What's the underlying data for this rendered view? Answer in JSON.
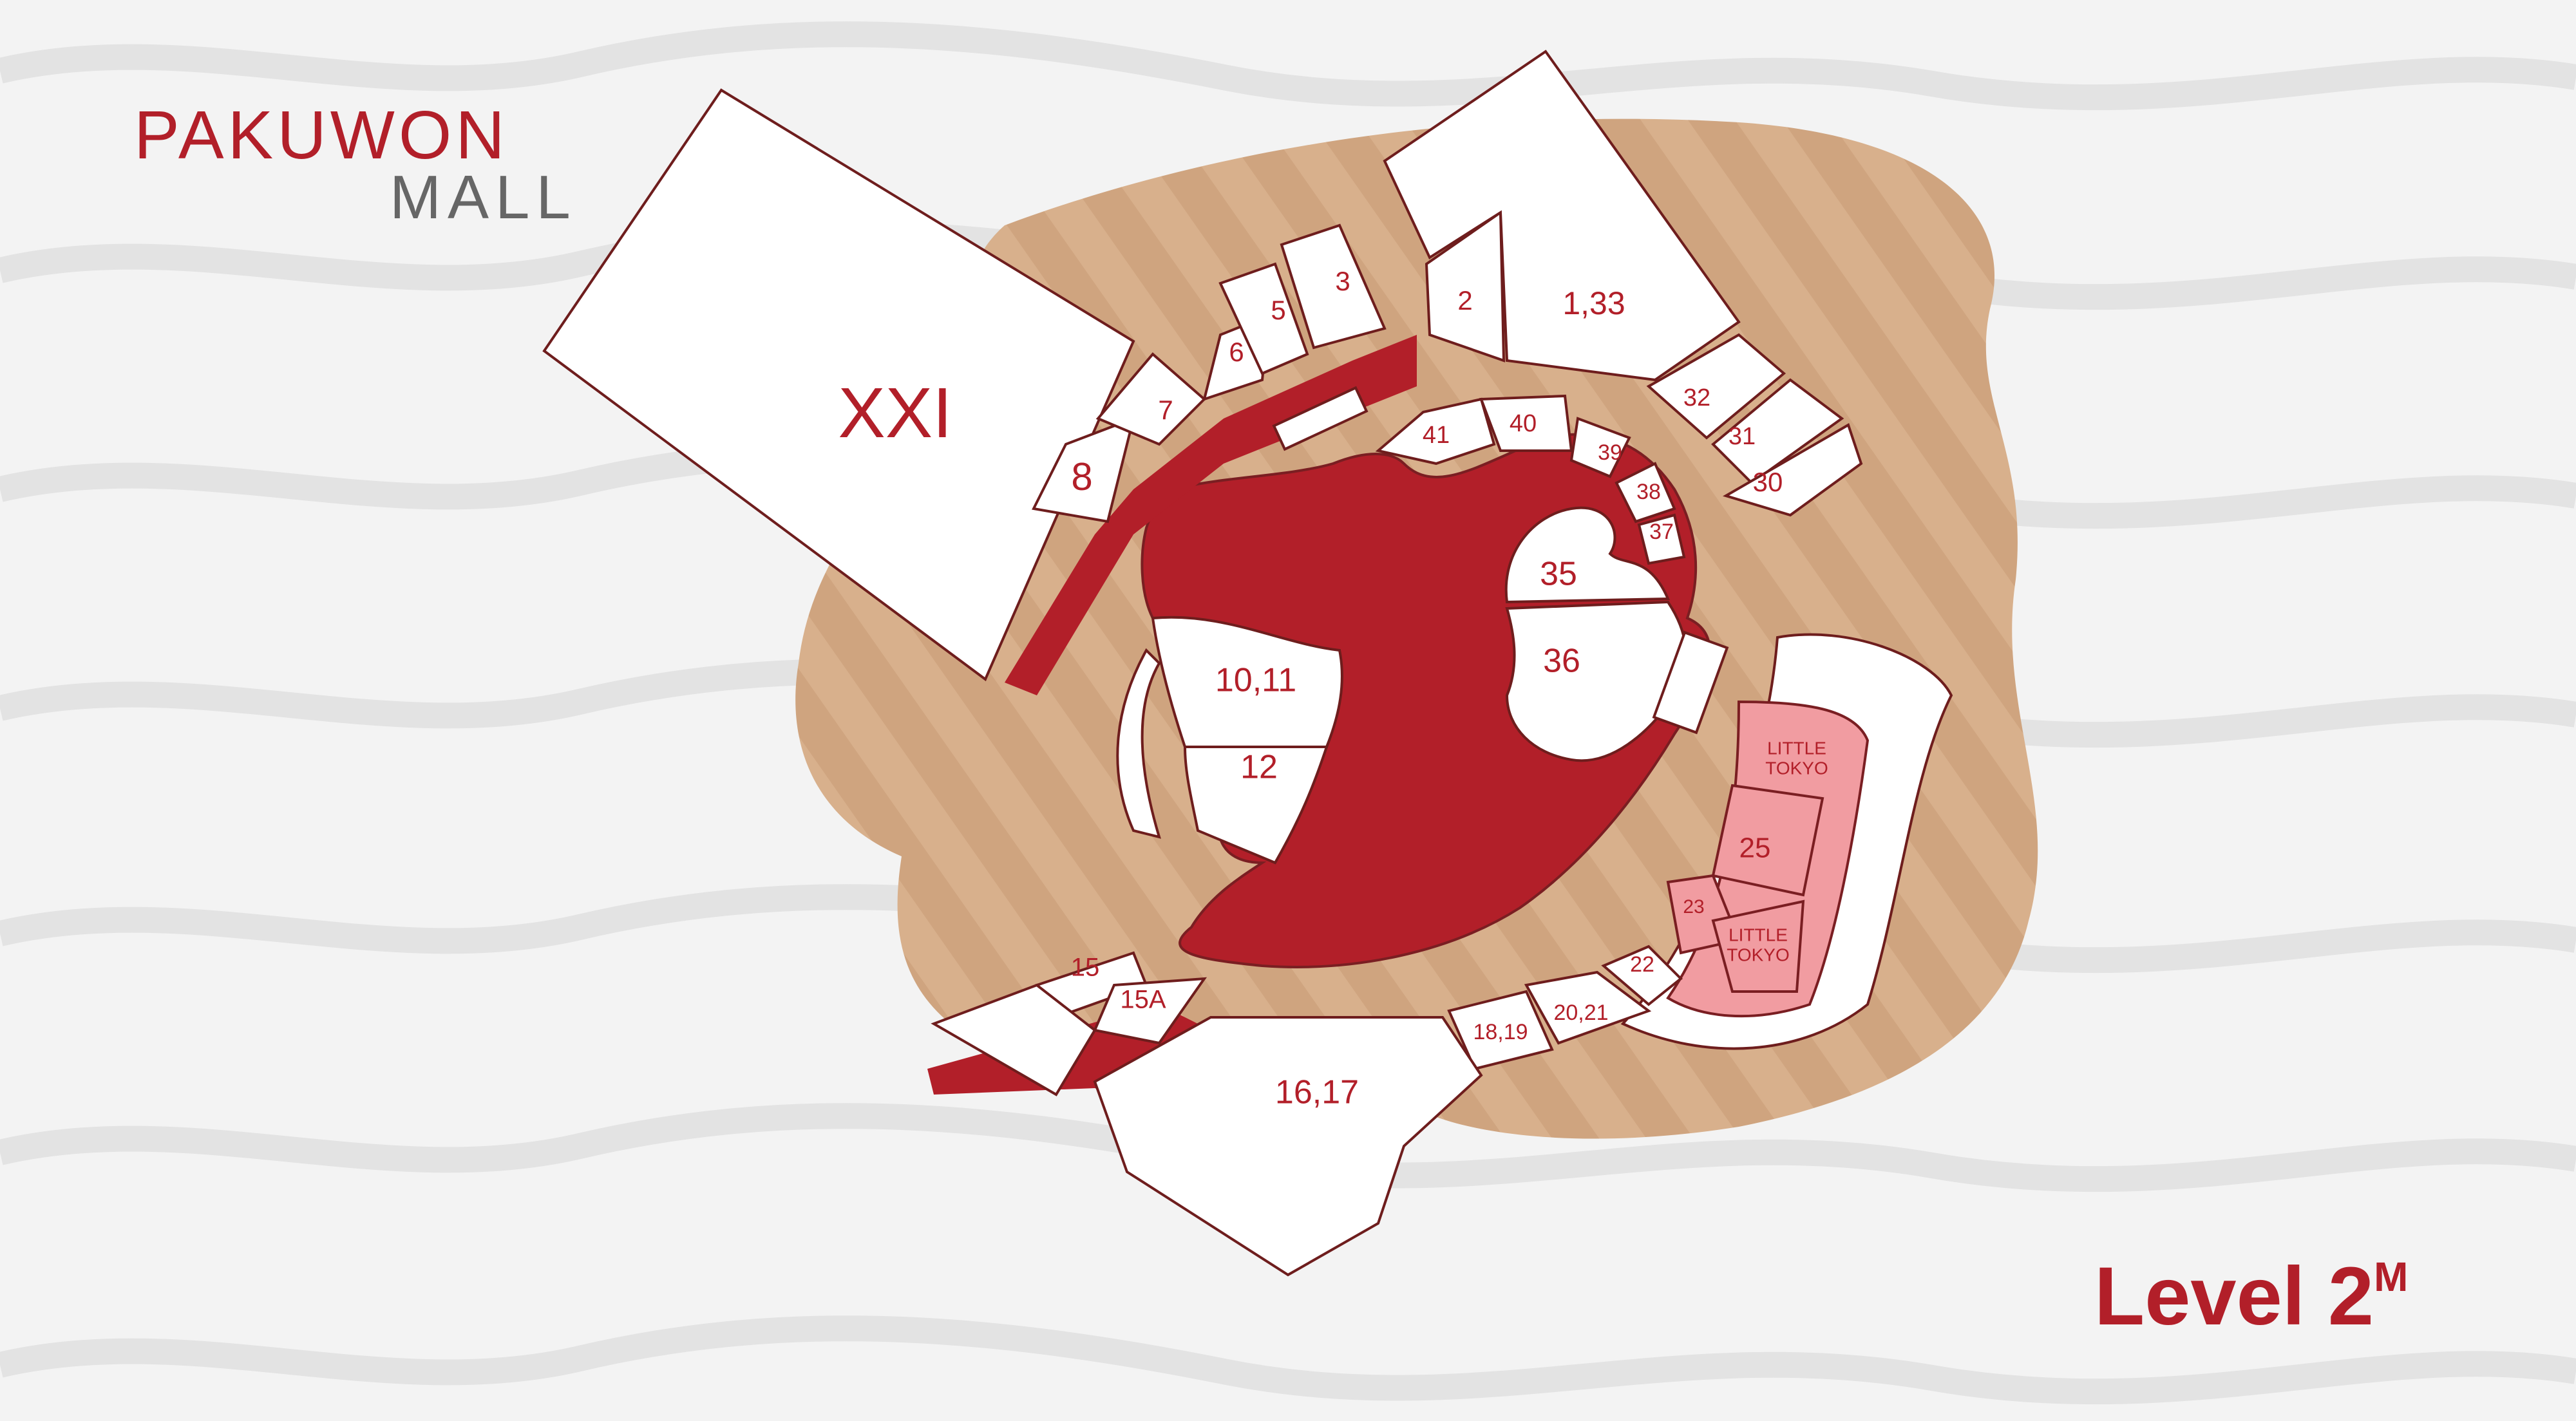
{
  "brand": {
    "name_line1": "PAKUWON",
    "name_line2": "MALL"
  },
  "level": {
    "label": "Level 2",
    "superscript": "M"
  },
  "colors": {
    "accent_red": "#b21f29",
    "floor_tan": "#d8b08c",
    "shop_white": "#ffffff",
    "little_tokyo_pink": "#f19ca1",
    "outline": "#6e1d1d",
    "background_waves": "#f3f3f3"
  },
  "units": [
    {
      "id": "XXI",
      "label": "XXI",
      "tone": "white"
    },
    {
      "id": "8",
      "label": "8",
      "tone": "white"
    },
    {
      "id": "7",
      "label": "7",
      "tone": "white"
    },
    {
      "id": "6",
      "label": "6",
      "tone": "white"
    },
    {
      "id": "5",
      "label": "5",
      "tone": "white"
    },
    {
      "id": "3",
      "label": "3",
      "tone": "white"
    },
    {
      "id": "2",
      "label": "2",
      "tone": "white"
    },
    {
      "id": "1_33",
      "label": "1,33",
      "tone": "white"
    },
    {
      "id": "32",
      "label": "32",
      "tone": "white"
    },
    {
      "id": "31",
      "label": "31",
      "tone": "white"
    },
    {
      "id": "30",
      "label": "30",
      "tone": "white"
    },
    {
      "id": "41",
      "label": "41",
      "tone": "white"
    },
    {
      "id": "40",
      "label": "40",
      "tone": "white"
    },
    {
      "id": "39",
      "label": "39",
      "tone": "white"
    },
    {
      "id": "38",
      "label": "38",
      "tone": "white"
    },
    {
      "id": "37",
      "label": "37",
      "tone": "white"
    },
    {
      "id": "35",
      "label": "35",
      "tone": "white"
    },
    {
      "id": "36",
      "label": "36",
      "tone": "white"
    },
    {
      "id": "10_11",
      "label": "10,11",
      "tone": "white"
    },
    {
      "id": "12",
      "label": "12",
      "tone": "white"
    },
    {
      "id": "little_tokyo_1",
      "label": "LITTLE TOKYO",
      "tone": "pink"
    },
    {
      "id": "25",
      "label": "25",
      "tone": "pink"
    },
    {
      "id": "23",
      "label": "23",
      "tone": "pink"
    },
    {
      "id": "little_tokyo_2",
      "label": "LITTLE TOKYO",
      "tone": "pink"
    },
    {
      "id": "22",
      "label": "22",
      "tone": "white"
    },
    {
      "id": "20_21",
      "label": "20,21",
      "tone": "white"
    },
    {
      "id": "18_19",
      "label": "18,19",
      "tone": "white"
    },
    {
      "id": "16_17",
      "label": "16,17",
      "tone": "white"
    },
    {
      "id": "15",
      "label": "15",
      "tone": "white"
    },
    {
      "id": "15A",
      "label": "15A",
      "tone": "white"
    }
  ]
}
